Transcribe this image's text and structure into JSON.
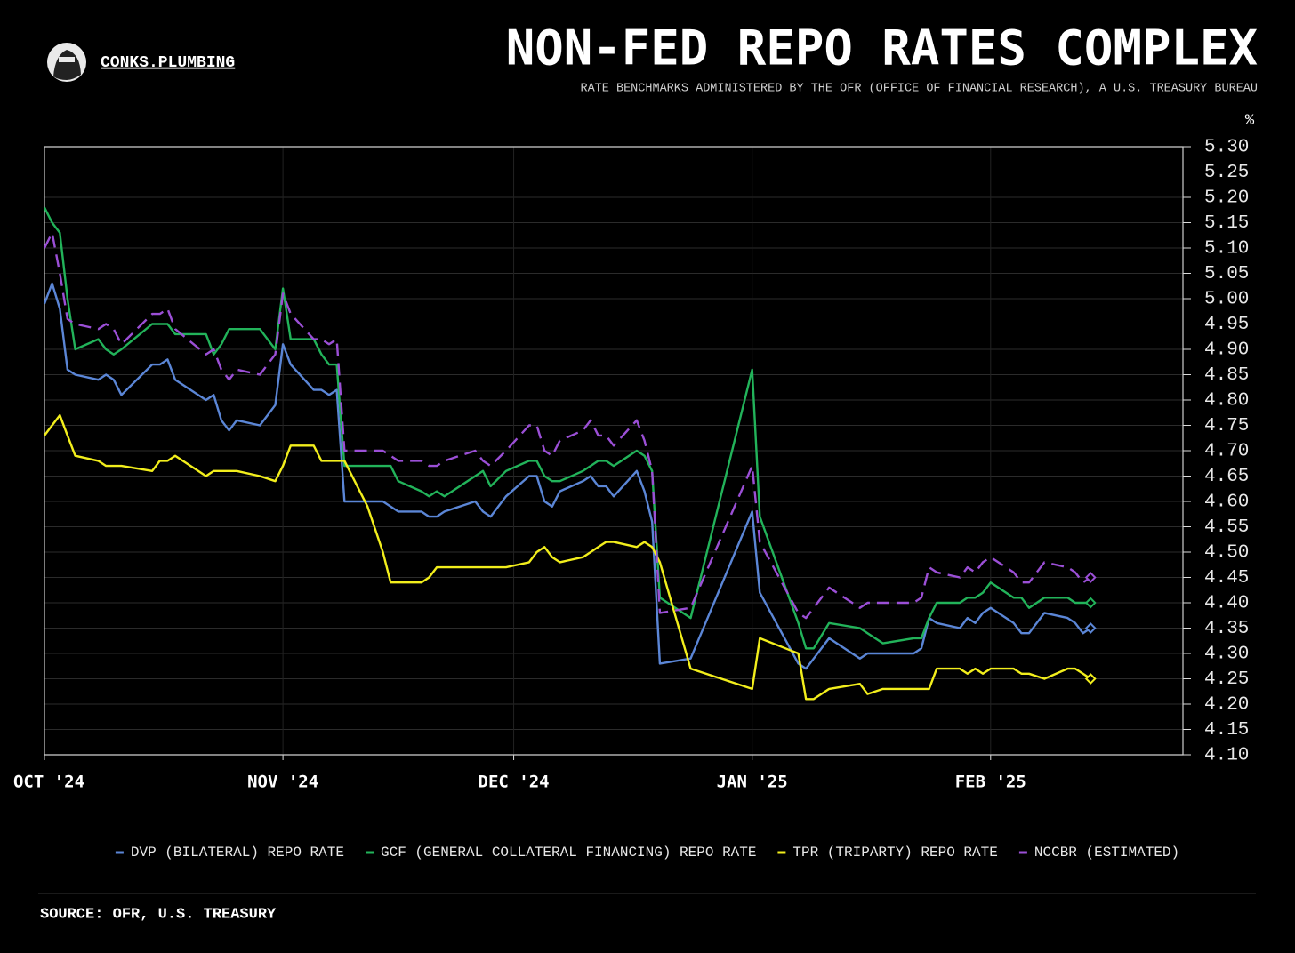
{
  "chart_data": {
    "type": "line",
    "brand": "CONKS.PLUMBING",
    "title": "NON-FED REPO RATES COMPLEX",
    "subtitle": "RATE BENCHMARKS ADMINISTERED BY THE OFR (OFFICE OF FINANCIAL RESEARCH), A U.S. TREASURY BUREAU",
    "y_unit": "%",
    "source": "SOURCE: OFR, U.S. TREASURY",
    "xlim": [
      0,
      148
    ],
    "xticks": [
      {
        "value": 0,
        "label": "OCT '24"
      },
      {
        "value": 31,
        "label": "NOV '24"
      },
      {
        "value": 61,
        "label": "DEC '24"
      },
      {
        "value": 92,
        "label": "JAN '25"
      },
      {
        "value": 123,
        "label": "FEB '25"
      }
    ],
    "ylim": [
      4.1,
      5.3
    ],
    "yticks": [
      {
        "value": 4.1,
        "label": "4.10"
      },
      {
        "value": 4.15,
        "label": "4.15"
      },
      {
        "value": 4.2,
        "label": "4.20"
      },
      {
        "value": 4.25,
        "label": "4.25"
      },
      {
        "value": 4.3,
        "label": "4.30"
      },
      {
        "value": 4.35,
        "label": "4.35"
      },
      {
        "value": 4.4,
        "label": "4.40"
      },
      {
        "value": 4.45,
        "label": "4.45"
      },
      {
        "value": 4.5,
        "label": "4.50"
      },
      {
        "value": 4.55,
        "label": "4.55"
      },
      {
        "value": 4.6,
        "label": "4.60"
      },
      {
        "value": 4.65,
        "label": "4.65"
      },
      {
        "value": 4.7,
        "label": "4.70"
      },
      {
        "value": 4.75,
        "label": "4.75"
      },
      {
        "value": 4.8,
        "label": "4.80"
      },
      {
        "value": 4.85,
        "label": "4.85"
      },
      {
        "value": 4.9,
        "label": "4.90"
      },
      {
        "value": 4.95,
        "label": "4.95"
      },
      {
        "value": 5.0,
        "label": "5.00"
      },
      {
        "value": 5.05,
        "label": "5.05"
      },
      {
        "value": 5.1,
        "label": "5.10"
      },
      {
        "value": 5.15,
        "label": "5.15"
      },
      {
        "value": 5.2,
        "label": "5.20"
      },
      {
        "value": 5.25,
        "label": "5.25"
      },
      {
        "value": 5.3,
        "label": "5.30"
      }
    ],
    "grid": true,
    "x": [
      0,
      1,
      2,
      3,
      4,
      7,
      8,
      9,
      10,
      14,
      15,
      16,
      17,
      21,
      22,
      23,
      24,
      25,
      28,
      30,
      31,
      32,
      35,
      36,
      37,
      38,
      39,
      42,
      44,
      45,
      46,
      49,
      50,
      51,
      52,
      56,
      57,
      58,
      60,
      63,
      64,
      65,
      66,
      67,
      70,
      71,
      72,
      73,
      74,
      77,
      78,
      79,
      80,
      84,
      92,
      93,
      98,
      99,
      100,
      102,
      106,
      107,
      109,
      113,
      114,
      115,
      116,
      119,
      120,
      121,
      122,
      123,
      126,
      127,
      128,
      130,
      133,
      134,
      135,
      136
    ],
    "series": [
      {
        "name": "DVP (BILATERAL) REPO RATE",
        "color": "#5b86d6",
        "dash": false,
        "values": [
          4.99,
          5.03,
          4.98,
          4.86,
          4.85,
          4.84,
          4.85,
          4.84,
          4.81,
          4.87,
          4.87,
          4.88,
          4.84,
          4.8,
          4.81,
          4.76,
          4.74,
          4.76,
          4.75,
          4.79,
          4.91,
          4.87,
          4.82,
          4.82,
          4.81,
          4.82,
          4.6,
          4.6,
          4.6,
          4.59,
          4.58,
          4.58,
          4.57,
          4.57,
          4.58,
          4.6,
          4.58,
          4.57,
          4.61,
          4.65,
          4.65,
          4.6,
          4.59,
          4.62,
          4.64,
          4.65,
          4.63,
          4.63,
          4.61,
          4.66,
          4.62,
          4.56,
          4.28,
          4.29,
          4.58,
          4.42,
          4.28,
          4.27,
          4.29,
          4.33,
          4.29,
          4.3,
          4.3,
          4.3,
          4.31,
          4.37,
          4.36,
          4.35,
          4.37,
          4.36,
          4.38,
          4.39,
          4.36,
          4.34,
          4.34,
          4.38,
          4.37,
          4.36,
          4.34,
          4.35
        ]
      },
      {
        "name": "GCF (GENERAL COLLATERAL FINANCING) REPO RATE",
        "color": "#22b35a",
        "dash": false,
        "values": [
          5.18,
          5.15,
          5.13,
          5.0,
          4.9,
          4.92,
          4.9,
          4.89,
          4.9,
          4.95,
          4.95,
          4.95,
          4.93,
          4.93,
          4.89,
          4.91,
          4.94,
          4.94,
          4.94,
          4.9,
          5.02,
          4.92,
          4.92,
          4.89,
          4.87,
          4.87,
          4.67,
          4.67,
          4.67,
          4.67,
          4.64,
          4.62,
          4.61,
          4.62,
          4.61,
          4.65,
          4.66,
          4.63,
          4.66,
          4.68,
          4.68,
          4.65,
          4.64,
          4.64,
          4.66,
          4.67,
          4.68,
          4.68,
          4.67,
          4.7,
          4.69,
          4.66,
          4.41,
          4.37,
          4.86,
          4.57,
          4.36,
          4.31,
          4.31,
          4.36,
          4.35,
          4.34,
          4.32,
          4.33,
          4.33,
          4.37,
          4.4,
          4.4,
          4.41,
          4.41,
          4.42,
          4.44,
          4.41,
          4.41,
          4.39,
          4.41,
          4.41,
          4.4,
          4.4,
          4.4
        ]
      },
      {
        "name": "TPR (TRIPARTY) REPO RATE",
        "color": "#f2ee1c",
        "dash": false,
        "values": [
          4.73,
          4.75,
          4.77,
          4.73,
          4.69,
          4.68,
          4.67,
          4.67,
          4.67,
          4.66,
          4.68,
          4.68,
          4.69,
          4.65,
          4.66,
          4.66,
          4.66,
          4.66,
          4.65,
          4.64,
          4.67,
          4.71,
          4.71,
          4.68,
          4.68,
          4.68,
          4.68,
          4.59,
          4.5,
          4.44,
          4.44,
          4.44,
          4.45,
          4.47,
          4.47,
          4.47,
          4.47,
          4.47,
          4.47,
          4.48,
          4.5,
          4.51,
          4.49,
          4.48,
          4.49,
          4.5,
          4.51,
          4.52,
          4.52,
          4.51,
          4.52,
          4.51,
          4.48,
          4.27,
          4.23,
          4.33,
          4.3,
          4.21,
          4.21,
          4.23,
          4.24,
          4.22,
          4.23,
          4.23,
          4.23,
          4.23,
          4.27,
          4.27,
          4.26,
          4.27,
          4.26,
          4.27,
          4.27,
          4.26,
          4.26,
          4.25,
          4.27,
          4.27,
          4.26,
          4.25
        ]
      },
      {
        "name": "NCCBR (ESTIMATED)",
        "color": "#9b4fd6",
        "dash": true,
        "values": [
          5.1,
          5.13,
          5.05,
          4.96,
          4.95,
          4.94,
          4.95,
          4.94,
          4.91,
          4.97,
          4.97,
          4.98,
          4.94,
          4.89,
          4.9,
          4.86,
          4.84,
          4.86,
          4.85,
          4.89,
          5.01,
          4.97,
          4.92,
          4.92,
          4.91,
          4.92,
          4.7,
          4.7,
          4.7,
          4.69,
          4.68,
          4.68,
          4.67,
          4.67,
          4.68,
          4.7,
          4.68,
          4.67,
          4.7,
          4.75,
          4.75,
          4.7,
          4.69,
          4.72,
          4.74,
          4.76,
          4.73,
          4.73,
          4.71,
          4.76,
          4.72,
          4.66,
          4.38,
          4.39,
          4.67,
          4.52,
          4.38,
          4.37,
          4.39,
          4.43,
          4.39,
          4.4,
          4.4,
          4.4,
          4.41,
          4.47,
          4.46,
          4.45,
          4.47,
          4.46,
          4.48,
          4.49,
          4.46,
          4.44,
          4.44,
          4.48,
          4.47,
          4.46,
          4.44,
          4.45
        ]
      }
    ]
  }
}
